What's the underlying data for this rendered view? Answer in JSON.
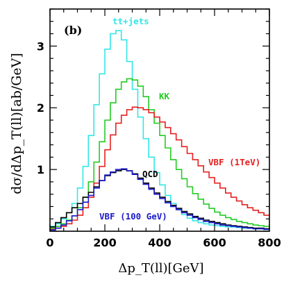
{
  "chart_data": {
    "type": "line",
    "panel_label": "(b)",
    "xlabel": "Δp_T(ll)[GeV]",
    "ylabel": "dσ/dΔp_T(ll)[ab/GeV]",
    "xlim": [
      0,
      800
    ],
    "ylim": [
      0,
      3.6
    ],
    "x_ticks": [
      "0",
      "200",
      "400",
      "600",
      "800"
    ],
    "y_ticks": [
      "1",
      "2",
      "3"
    ],
    "bin_edges": [
      0,
      20,
      40,
      60,
      80,
      100,
      120,
      140,
      160,
      180,
      200,
      220,
      240,
      260,
      280,
      300,
      320,
      340,
      360,
      380,
      400,
      420,
      440,
      460,
      480,
      500,
      520,
      540,
      560,
      580,
      600,
      620,
      640,
      660,
      680,
      700,
      720,
      740,
      760,
      780,
      800
    ],
    "series": [
      {
        "name": "tt+jets",
        "color": "#33e6e6",
        "values": [
          0.08,
          0.12,
          0.2,
          0.3,
          0.45,
          0.7,
          1.05,
          1.55,
          2.05,
          2.55,
          2.95,
          3.2,
          3.25,
          3.1,
          2.75,
          2.3,
          1.85,
          1.5,
          1.2,
          0.95,
          0.75,
          0.58,
          0.45,
          0.35,
          0.27,
          0.21,
          0.17,
          0.14,
          0.12,
          0.1,
          0.09,
          0.08,
          0.07,
          0.07,
          0.06,
          0.05,
          0.05,
          0.04,
          0.04,
          0.03
        ]
      },
      {
        "name": "KK",
        "color": "#22cc22",
        "values": [
          0.05,
          0.08,
          0.12,
          0.18,
          0.25,
          0.38,
          0.55,
          0.8,
          1.12,
          1.45,
          1.8,
          2.08,
          2.3,
          2.42,
          2.47,
          2.45,
          2.35,
          2.18,
          1.97,
          1.75,
          1.55,
          1.35,
          1.16,
          1.0,
          0.85,
          0.72,
          0.61,
          0.52,
          0.44,
          0.37,
          0.31,
          0.26,
          0.22,
          0.19,
          0.16,
          0.14,
          0.12,
          0.1,
          0.09,
          0.08
        ]
      },
      {
        "name": "VBF (1TeV)",
        "color": "#e62020",
        "values": [
          0.03,
          0.05,
          0.08,
          0.12,
          0.18,
          0.26,
          0.38,
          0.55,
          0.78,
          1.05,
          1.32,
          1.56,
          1.75,
          1.88,
          1.97,
          2.01,
          2.0,
          1.97,
          1.92,
          1.85,
          1.77,
          1.68,
          1.58,
          1.48,
          1.37,
          1.26,
          1.16,
          1.06,
          0.96,
          0.87,
          0.78,
          0.7,
          0.62,
          0.55,
          0.49,
          0.43,
          0.38,
          0.34,
          0.3,
          0.26
        ]
      },
      {
        "name": "QCD",
        "color": "#000000",
        "values": [
          0.07,
          0.14,
          0.22,
          0.3,
          0.38,
          0.45,
          0.55,
          0.63,
          0.72,
          0.82,
          0.9,
          0.95,
          0.98,
          1.0,
          0.98,
          0.93,
          0.86,
          0.78,
          0.7,
          0.62,
          0.55,
          0.48,
          0.42,
          0.37,
          0.32,
          0.28,
          0.24,
          0.21,
          0.18,
          0.16,
          0.14,
          0.12,
          0.1,
          0.09,
          0.08,
          0.07,
          0.06,
          0.05,
          0.05,
          0.04
        ]
      },
      {
        "name": "VBF (100 GeV)",
        "color": "#1a1acc",
        "values": [
          0.02,
          0.05,
          0.1,
          0.17,
          0.25,
          0.35,
          0.47,
          0.58,
          0.7,
          0.82,
          0.91,
          0.96,
          1.0,
          1.01,
          0.98,
          0.92,
          0.84,
          0.76,
          0.68,
          0.6,
          0.53,
          0.46,
          0.4,
          0.35,
          0.3,
          0.26,
          0.22,
          0.19,
          0.16,
          0.14,
          0.12,
          0.1,
          0.09,
          0.08,
          0.07,
          0.06,
          0.05,
          0.04,
          0.04,
          0.03
        ]
      }
    ]
  }
}
